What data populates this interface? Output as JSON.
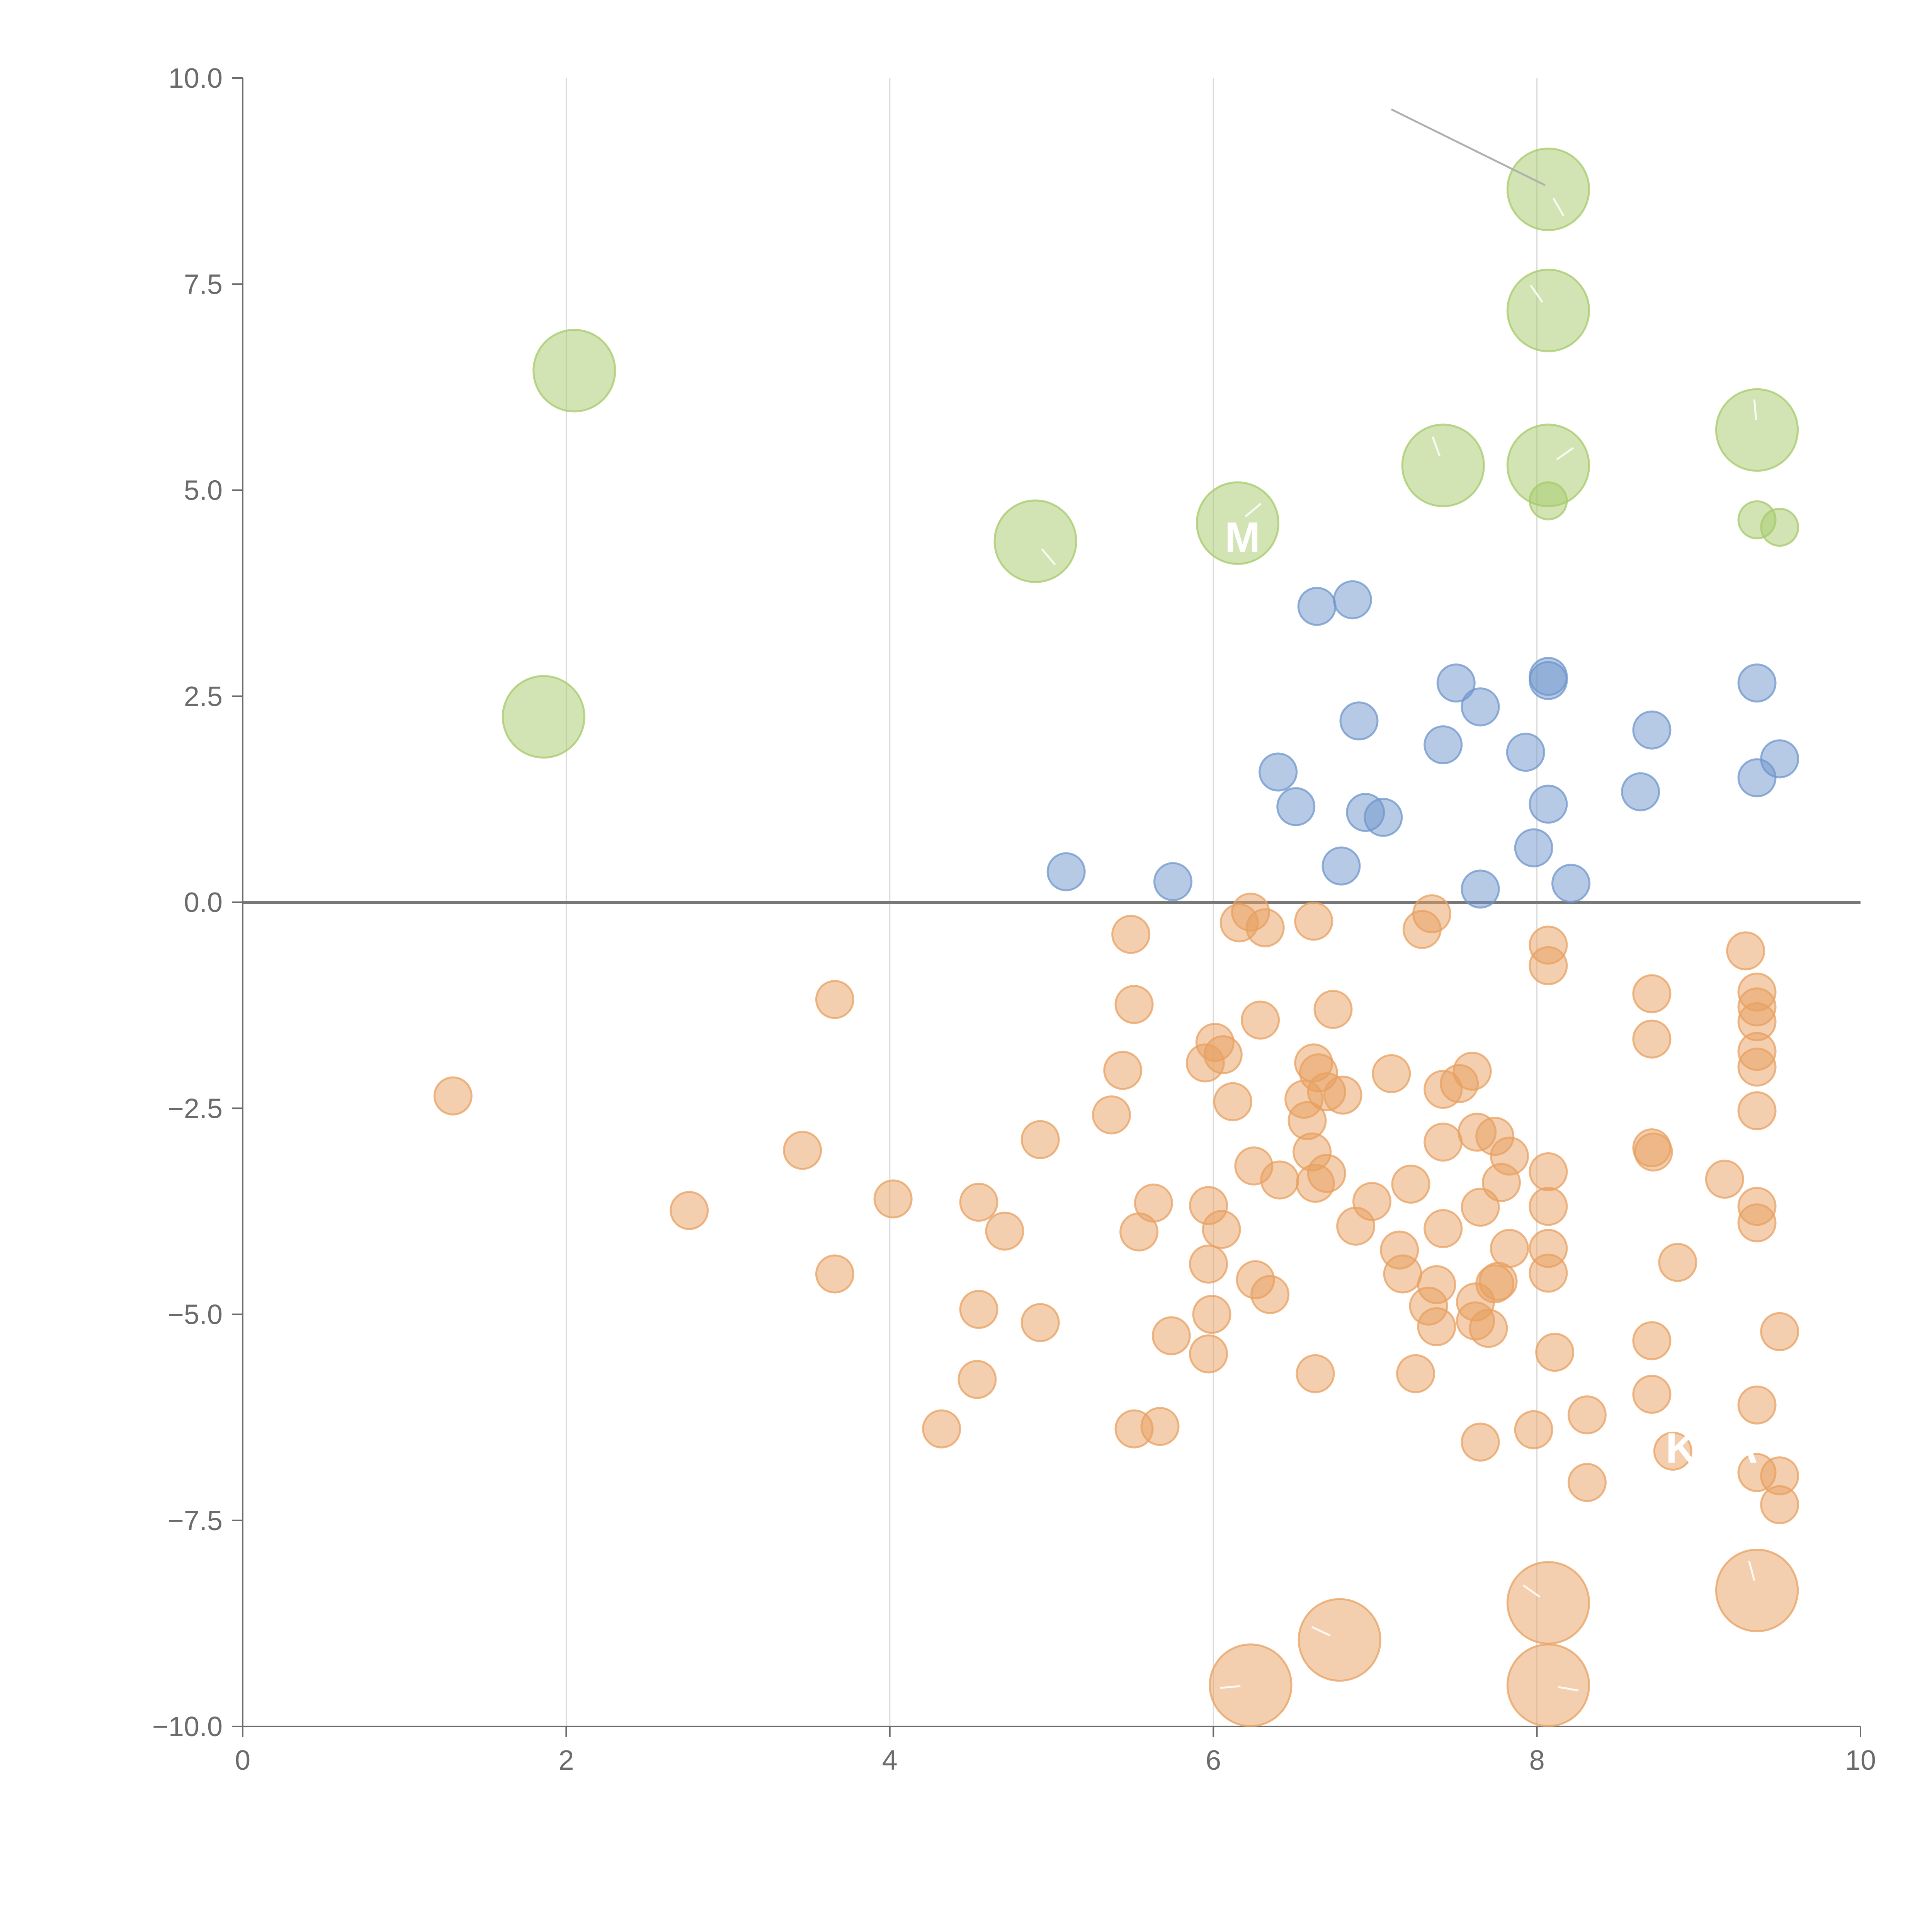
{
  "colors": {
    "green": "#a6c96a",
    "blue": "#6f95cc",
    "orange": "#e8a060",
    "axis": "#6b6b6b",
    "grid": "#d9d9d9",
    "zero_line": "#777777",
    "leader": "#b0b0b0",
    "spoke": "#ffffff",
    "label": "#ffffff"
  },
  "chart_data": {
    "type": "scatter",
    "title": "",
    "xlabel": "",
    "ylabel": "",
    "xlim": [
      0,
      10
    ],
    "ylim": [
      -10,
      10
    ],
    "grid": "vertical",
    "x_ticks": [
      0,
      2,
      4,
      6,
      8,
      10
    ],
    "x_tick_labels": [
      "0",
      "2",
      "4",
      "6",
      "8",
      "10"
    ],
    "y_ticks": [
      10,
      7.5,
      5,
      2.5,
      0,
      -2.5,
      -5,
      -7.5,
      -10
    ],
    "y_tick_labels": [
      "10.0",
      "7.5",
      "5.0",
      "2.5",
      "0.0",
      "−2.5",
      "−5.0",
      "−7.5",
      "−10.0"
    ],
    "zero_line": 0,
    "series": [
      {
        "name": "green",
        "color_key": "green",
        "points": [
          {
            "x": 8.07,
            "y": 8.65,
            "r": 2.2,
            "spoke_angle": -60
          },
          {
            "x": 8.07,
            "y": 7.18,
            "r": 2.2,
            "spoke_angle": 125
          },
          {
            "x": 2.05,
            "y": 6.45,
            "r": 2.2
          },
          {
            "x": 9.36,
            "y": 5.73,
            "r": 2.2,
            "spoke_angle": 95
          },
          {
            "x": 7.42,
            "y": 5.3,
            "r": 2.2,
            "spoke_angle": 110
          },
          {
            "x": 8.07,
            "y": 5.3,
            "r": 2.2,
            "spoke_angle": 35
          },
          {
            "x": 8.07,
            "y": 4.87,
            "r": 1.0
          },
          {
            "x": 9.36,
            "y": 4.64,
            "r": 1.0
          },
          {
            "x": 9.5,
            "y": 4.55,
            "r": 1.0
          },
          {
            "x": 6.15,
            "y": 4.6,
            "r": 2.2,
            "spoke_angle": 40
          },
          {
            "x": 4.9,
            "y": 4.38,
            "r": 2.2,
            "spoke_angle": -50
          },
          {
            "x": 1.86,
            "y": 2.25,
            "r": 2.2
          }
        ]
      },
      {
        "name": "blue",
        "color_key": "blue",
        "points": [
          {
            "x": 6.64,
            "y": 3.59
          },
          {
            "x": 6.86,
            "y": 3.67
          },
          {
            "x": 7.5,
            "y": 2.66
          },
          {
            "x": 7.65,
            "y": 2.37
          },
          {
            "x": 8.07,
            "y": 2.74
          },
          {
            "x": 8.07,
            "y": 2.69
          },
          {
            "x": 9.36,
            "y": 2.66
          },
          {
            "x": 6.9,
            "y": 2.2
          },
          {
            "x": 8.71,
            "y": 2.09
          },
          {
            "x": 7.42,
            "y": 1.91
          },
          {
            "x": 7.93,
            "y": 1.82
          },
          {
            "x": 9.5,
            "y": 1.74
          },
          {
            "x": 6.4,
            "y": 1.58
          },
          {
            "x": 9.36,
            "y": 1.51
          },
          {
            "x": 8.64,
            "y": 1.34
          },
          {
            "x": 8.07,
            "y": 1.19
          },
          {
            "x": 6.51,
            "y": 1.16
          },
          {
            "x": 6.94,
            "y": 1.09
          },
          {
            "x": 7.05,
            "y": 1.03
          },
          {
            "x": 7.98,
            "y": 0.66
          },
          {
            "x": 6.79,
            "y": 0.44
          },
          {
            "x": 5.09,
            "y": 0.37
          },
          {
            "x": 5.75,
            "y": 0.25
          },
          {
            "x": 8.21,
            "y": 0.23
          },
          {
            "x": 7.65,
            "y": 0.16
          }
        ]
      },
      {
        "name": "orange",
        "color_key": "orange",
        "points": [
          {
            "x": 6.23,
            "y": -0.12
          },
          {
            "x": 6.16,
            "y": -0.25
          },
          {
            "x": 6.32,
            "y": -0.31
          },
          {
            "x": 6.62,
            "y": -0.23
          },
          {
            "x": 7.35,
            "y": -0.14
          },
          {
            "x": 7.29,
            "y": -0.33
          },
          {
            "x": 5.49,
            "y": -0.39
          },
          {
            "x": 8.07,
            "y": -0.52
          },
          {
            "x": 8.07,
            "y": -0.77
          },
          {
            "x": 9.29,
            "y": -0.59
          },
          {
            "x": 3.66,
            "y": -1.18
          },
          {
            "x": 5.51,
            "y": -1.24
          },
          {
            "x": 6.29,
            "y": -1.43
          },
          {
            "x": 6.74,
            "y": -1.3
          },
          {
            "x": 8.71,
            "y": -1.11
          },
          {
            "x": 9.36,
            "y": -1.09
          },
          {
            "x": 9.36,
            "y": -1.27
          },
          {
            "x": 9.36,
            "y": -1.45
          },
          {
            "x": 6.01,
            "y": -1.7
          },
          {
            "x": 6.06,
            "y": -1.85
          },
          {
            "x": 5.95,
            "y": -1.95
          },
          {
            "x": 5.44,
            "y": -2.04
          },
          {
            "x": 6.62,
            "y": -1.95
          },
          {
            "x": 6.65,
            "y": -2.07
          },
          {
            "x": 7.1,
            "y": -2.08
          },
          {
            "x": 7.6,
            "y": -2.05
          },
          {
            "x": 8.71,
            "y": -1.66
          },
          {
            "x": 9.36,
            "y": -1.81
          },
          {
            "x": 9.36,
            "y": -2.0
          },
          {
            "x": 1.3,
            "y": -2.35
          },
          {
            "x": 6.12,
            "y": -2.42
          },
          {
            "x": 6.56,
            "y": -2.39
          },
          {
            "x": 6.7,
            "y": -2.3
          },
          {
            "x": 6.8,
            "y": -2.34
          },
          {
            "x": 7.42,
            "y": -2.27
          },
          {
            "x": 7.52,
            "y": -2.2
          },
          {
            "x": 5.37,
            "y": -2.58
          },
          {
            "x": 6.58,
            "y": -2.65
          },
          {
            "x": 9.36,
            "y": -2.53
          },
          {
            "x": 4.93,
            "y": -2.88
          },
          {
            "x": 7.42,
            "y": -2.91
          },
          {
            "x": 7.63,
            "y": -2.79
          },
          {
            "x": 7.74,
            "y": -2.84
          },
          {
            "x": 3.46,
            "y": -3.01
          },
          {
            "x": 6.61,
            "y": -3.03
          },
          {
            "x": 7.83,
            "y": -3.08
          },
          {
            "x": 8.71,
            "y": -2.98
          },
          {
            "x": 8.72,
            "y": -3.03
          },
          {
            "x": 6.25,
            "y": -3.2
          },
          {
            "x": 6.41,
            "y": -3.37
          },
          {
            "x": 6.63,
            "y": -3.41
          },
          {
            "x": 6.7,
            "y": -3.29
          },
          {
            "x": 7.22,
            "y": -3.42
          },
          {
            "x": 7.78,
            "y": -3.4
          },
          {
            "x": 8.07,
            "y": -3.27
          },
          {
            "x": 9.16,
            "y": -3.36
          },
          {
            "x": 2.76,
            "y": -3.74
          },
          {
            "x": 4.02,
            "y": -3.6
          },
          {
            "x": 4.55,
            "y": -3.64
          },
          {
            "x": 5.63,
            "y": -3.65
          },
          {
            "x": 5.97,
            "y": -3.68
          },
          {
            "x": 6.98,
            "y": -3.63
          },
          {
            "x": 7.65,
            "y": -3.7
          },
          {
            "x": 8.07,
            "y": -3.69
          },
          {
            "x": 9.36,
            "y": -3.69
          },
          {
            "x": 4.71,
            "y": -3.99
          },
          {
            "x": 5.54,
            "y": -4.0
          },
          {
            "x": 6.05,
            "y": -3.97
          },
          {
            "x": 6.88,
            "y": -3.93
          },
          {
            "x": 7.42,
            "y": -3.96
          },
          {
            "x": 9.36,
            "y": -3.89
          },
          {
            "x": 7.15,
            "y": -4.22
          },
          {
            "x": 7.83,
            "y": -4.2
          },
          {
            "x": 8.07,
            "y": -4.2
          },
          {
            "x": 8.87,
            "y": -4.37
          },
          {
            "x": 3.66,
            "y": -4.51
          },
          {
            "x": 5.97,
            "y": -4.39
          },
          {
            "x": 6.26,
            "y": -4.58
          },
          {
            "x": 7.17,
            "y": -4.51
          },
          {
            "x": 7.38,
            "y": -4.64
          },
          {
            "x": 7.76,
            "y": -4.6
          },
          {
            "x": 7.74,
            "y": -4.63
          },
          {
            "x": 8.07,
            "y": -4.5
          },
          {
            "x": 6.35,
            "y": -4.76
          },
          {
            "x": 7.33,
            "y": -4.9
          },
          {
            "x": 7.62,
            "y": -4.85
          },
          {
            "x": 4.55,
            "y": -4.94
          },
          {
            "x": 5.99,
            "y": -5.0
          },
          {
            "x": 4.93,
            "y": -5.1
          },
          {
            "x": 7.38,
            "y": -5.15
          },
          {
            "x": 7.62,
            "y": -5.08
          },
          {
            "x": 7.7,
            "y": -5.17
          },
          {
            "x": 9.5,
            "y": -5.21
          },
          {
            "x": 5.74,
            "y": -5.26
          },
          {
            "x": 8.71,
            "y": -5.32
          },
          {
            "x": 5.97,
            "y": -5.48
          },
          {
            "x": 8.11,
            "y": -5.46
          },
          {
            "x": 4.54,
            "y": -5.79
          },
          {
            "x": 6.63,
            "y": -5.72
          },
          {
            "x": 7.25,
            "y": -5.72
          },
          {
            "x": 8.71,
            "y": -5.97
          },
          {
            "x": 9.36,
            "y": -6.1
          },
          {
            "x": 8.31,
            "y": -6.22
          },
          {
            "x": 4.32,
            "y": -6.39
          },
          {
            "x": 5.51,
            "y": -6.39
          },
          {
            "x": 5.67,
            "y": -6.36
          },
          {
            "x": 7.98,
            "y": -6.4
          },
          {
            "x": 7.65,
            "y": -6.55
          },
          {
            "x": 8.84,
            "y": -6.66
          },
          {
            "x": 9.36,
            "y": -6.92
          },
          {
            "x": 9.5,
            "y": -6.96
          },
          {
            "x": 8.31,
            "y": -7.04
          },
          {
            "x": 9.5,
            "y": -7.31
          },
          {
            "x": 9.36,
            "y": -8.35,
            "r": 2.2,
            "spoke_angle": 105
          },
          {
            "x": 8.07,
            "y": -8.5,
            "r": 2.2,
            "spoke_angle": 145
          },
          {
            "x": 6.78,
            "y": -8.95,
            "r": 2.2,
            "spoke_angle": 155
          },
          {
            "x": 6.23,
            "y": -9.5,
            "r": 2.2,
            "spoke_angle": 185
          },
          {
            "x": 8.07,
            "y": -9.5,
            "r": 2.2,
            "spoke_angle": -10
          }
        ]
      }
    ],
    "annotations": [
      {
        "text": "M",
        "x": 6.18,
        "y": 4.25
      },
      {
        "text": "KDA",
        "x": 9.08,
        "y": -6.8
      }
    ],
    "leader_line": {
      "x1": 7.1,
      "y1": 9.62,
      "x2": 8.05,
      "y2": 8.7
    }
  }
}
